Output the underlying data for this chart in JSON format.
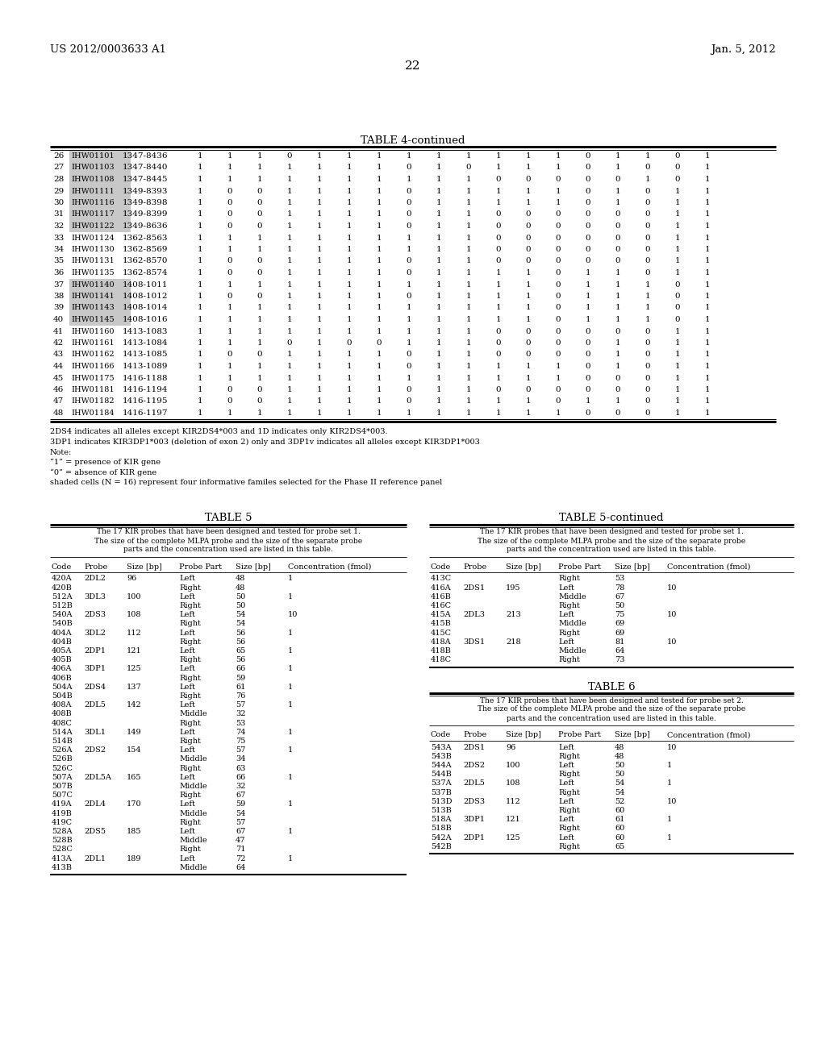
{
  "header_left": "US 2012/0003633 A1",
  "header_right": "Jan. 5, 2012",
  "page_number": "22",
  "table4_title": "TABLE 4-continued",
  "table4_rows": [
    {
      "num": "26",
      "code": "IHW01101",
      "range": "1347-8436",
      "vals": [
        1,
        1,
        1,
        0,
        1,
        1,
        1,
        1,
        1,
        1,
        1,
        1,
        1,
        0,
        1,
        1,
        0,
        1
      ],
      "shaded": true
    },
    {
      "num": "27",
      "code": "IHW01103",
      "range": "1347-8440",
      "vals": [
        1,
        1,
        1,
        1,
        1,
        1,
        1,
        0,
        1,
        0,
        1,
        1,
        1,
        0,
        1,
        0,
        0,
        1
      ],
      "shaded": true
    },
    {
      "num": "28",
      "code": "IHW01108",
      "range": "1347-8445",
      "vals": [
        1,
        1,
        1,
        1,
        1,
        1,
        1,
        1,
        1,
        1,
        0,
        0,
        0,
        0,
        0,
        1,
        0,
        1
      ],
      "shaded": true
    },
    {
      "num": "29",
      "code": "IHW01111",
      "range": "1349-8393",
      "vals": [
        1,
        0,
        0,
        1,
        1,
        1,
        1,
        0,
        1,
        1,
        1,
        1,
        1,
        0,
        1,
        0,
        1,
        1
      ],
      "shaded": true
    },
    {
      "num": "30",
      "code": "IHW01116",
      "range": "1349-8398",
      "vals": [
        1,
        0,
        0,
        1,
        1,
        1,
        1,
        0,
        1,
        1,
        1,
        1,
        1,
        0,
        1,
        0,
        1,
        1
      ],
      "shaded": true
    },
    {
      "num": "31",
      "code": "IHW01117",
      "range": "1349-8399",
      "vals": [
        1,
        0,
        0,
        1,
        1,
        1,
        1,
        0,
        1,
        1,
        0,
        0,
        0,
        0,
        0,
        0,
        1,
        1
      ],
      "shaded": true
    },
    {
      "num": "32",
      "code": "IHW01122",
      "range": "1349-8636",
      "vals": [
        1,
        0,
        0,
        1,
        1,
        1,
        1,
        0,
        1,
        1,
        0,
        0,
        0,
        0,
        0,
        0,
        1,
        1
      ],
      "shaded": true
    },
    {
      "num": "33",
      "code": "IHW01124",
      "range": "1362-8563",
      "vals": [
        1,
        1,
        1,
        1,
        1,
        1,
        1,
        1,
        1,
        1,
        0,
        0,
        0,
        0,
        0,
        0,
        1,
        1
      ],
      "shaded": false
    },
    {
      "num": "34",
      "code": "IHW01130",
      "range": "1362-8569",
      "vals": [
        1,
        1,
        1,
        1,
        1,
        1,
        1,
        1,
        1,
        1,
        0,
        0,
        0,
        0,
        0,
        0,
        1,
        1
      ],
      "shaded": false
    },
    {
      "num": "35",
      "code": "IHW01131",
      "range": "1362-8570",
      "vals": [
        1,
        0,
        0,
        1,
        1,
        1,
        1,
        0,
        1,
        1,
        0,
        0,
        0,
        0,
        0,
        0,
        1,
        1
      ],
      "shaded": false
    },
    {
      "num": "36",
      "code": "IHW01135",
      "range": "1362-8574",
      "vals": [
        1,
        0,
        0,
        1,
        1,
        1,
        1,
        0,
        1,
        1,
        1,
        1,
        0,
        1,
        1,
        0,
        1,
        1
      ],
      "shaded": false
    },
    {
      "num": "37",
      "code": "IHW01140",
      "range": "1408-1011",
      "vals": [
        1,
        1,
        1,
        1,
        1,
        1,
        1,
        1,
        1,
        1,
        1,
        1,
        0,
        1,
        1,
        1,
        0,
        1
      ],
      "shaded": true
    },
    {
      "num": "38",
      "code": "IHW01141",
      "range": "1408-1012",
      "vals": [
        1,
        0,
        0,
        1,
        1,
        1,
        1,
        0,
        1,
        1,
        1,
        1,
        0,
        1,
        1,
        1,
        0,
        1
      ],
      "shaded": true
    },
    {
      "num": "39",
      "code": "IHW01143",
      "range": "1408-1014",
      "vals": [
        1,
        1,
        1,
        1,
        1,
        1,
        1,
        1,
        1,
        1,
        1,
        1,
        0,
        1,
        1,
        1,
        0,
        1
      ],
      "shaded": true
    },
    {
      "num": "40",
      "code": "IHW01145",
      "range": "1408-1016",
      "vals": [
        1,
        1,
        1,
        1,
        1,
        1,
        1,
        1,
        1,
        1,
        1,
        1,
        0,
        1,
        1,
        1,
        0,
        1
      ],
      "shaded": true
    },
    {
      "num": "41",
      "code": "IHW01160",
      "range": "1413-1083",
      "vals": [
        1,
        1,
        1,
        1,
        1,
        1,
        1,
        1,
        1,
        1,
        0,
        0,
        0,
        0,
        0,
        0,
        1,
        1
      ],
      "shaded": false
    },
    {
      "num": "42",
      "code": "IHW01161",
      "range": "1413-1084",
      "vals": [
        1,
        1,
        1,
        0,
        1,
        0,
        0,
        1,
        1,
        1,
        0,
        0,
        0,
        0,
        1,
        0,
        1,
        1
      ],
      "shaded": false
    },
    {
      "num": "43",
      "code": "IHW01162",
      "range": "1413-1085",
      "vals": [
        1,
        0,
        0,
        1,
        1,
        1,
        1,
        0,
        1,
        1,
        0,
        0,
        0,
        0,
        1,
        0,
        1,
        1
      ],
      "shaded": false
    },
    {
      "num": "44",
      "code": "IHW01166",
      "range": "1413-1089",
      "vals": [
        1,
        1,
        1,
        1,
        1,
        1,
        1,
        0,
        1,
        1,
        1,
        1,
        1,
        0,
        1,
        0,
        1,
        1
      ],
      "shaded": false
    },
    {
      "num": "45",
      "code": "IHW01175",
      "range": "1416-1188",
      "vals": [
        1,
        1,
        1,
        1,
        1,
        1,
        1,
        1,
        1,
        1,
        1,
        1,
        1,
        0,
        0,
        0,
        1,
        1
      ],
      "shaded": false
    },
    {
      "num": "46",
      "code": "IHW01181",
      "range": "1416-1194",
      "vals": [
        1,
        0,
        0,
        1,
        1,
        1,
        1,
        0,
        1,
        1,
        0,
        0,
        0,
        0,
        0,
        0,
        1,
        1
      ],
      "shaded": false
    },
    {
      "num": "47",
      "code": "IHW01182",
      "range": "1416-1195",
      "vals": [
        1,
        0,
        0,
        1,
        1,
        1,
        1,
        0,
        1,
        1,
        1,
        1,
        0,
        1,
        1,
        0,
        1,
        1
      ],
      "shaded": false
    },
    {
      "num": "48",
      "code": "IHW01184",
      "range": "1416-1197",
      "vals": [
        1,
        1,
        1,
        1,
        1,
        1,
        1,
        1,
        1,
        1,
        1,
        1,
        1,
        0,
        0,
        0,
        1,
        1
      ],
      "shaded": false
    }
  ],
  "table4_footnotes": [
    "2DS4 indicates all alleles except KIR2DS4*003 and 1D indicates only KIR2DS4*003.",
    "3DP1 indicates KIR3DP1*003 (deletion of exon 2) only and 3DP1v indicates all alleles except KIR3DP1*003",
    "Note:",
    "“1” = presence of KIR gene",
    "“0” = absence of KIR gene",
    "shaded cells (N = 16) represent four informative familes selected for the Phase II reference panel"
  ],
  "table5_title": "TABLE 5",
  "table5cont_title": "TABLE 5-continued",
  "table5_desc": "The 17 KIR probes that have been designed and tested for probe set 1.\nThe size of the complete MLPA probe and the size of the separate probe\nparts and the concentration used are listed in this table.",
  "table5_cols": [
    "Code",
    "Probe",
    "Size [bp]",
    "Probe Part",
    "Size [bp]",
    "Concentration (fmol)"
  ],
  "table5_rows": [
    [
      "420A",
      "2DL2",
      "96",
      "Left",
      "48",
      "1"
    ],
    [
      "420B",
      "",
      "",
      "Right",
      "48",
      ""
    ],
    [
      "512A",
      "3DL3",
      "100",
      "Left",
      "50",
      "1"
    ],
    [
      "512B",
      "",
      "",
      "Right",
      "50",
      ""
    ],
    [
      "540A",
      "2DS3",
      "108",
      "Left",
      "54",
      "10"
    ],
    [
      "540B",
      "",
      "",
      "Right",
      "54",
      ""
    ],
    [
      "404A",
      "3DL2",
      "112",
      "Left",
      "56",
      "1"
    ],
    [
      "404B",
      "",
      "",
      "Right",
      "56",
      ""
    ],
    [
      "405A",
      "2DP1",
      "121",
      "Left",
      "65",
      "1"
    ],
    [
      "405B",
      "",
      "",
      "Right",
      "56",
      ""
    ],
    [
      "406A",
      "3DP1",
      "125",
      "Left",
      "66",
      "1"
    ],
    [
      "406B",
      "",
      "",
      "Right",
      "59",
      ""
    ],
    [
      "504A",
      "2DS4",
      "137",
      "Left",
      "61",
      "1"
    ],
    [
      "504B",
      "",
      "",
      "Right",
      "76",
      ""
    ],
    [
      "408A",
      "2DL5",
      "142",
      "Left",
      "57",
      "1"
    ],
    [
      "408B",
      "",
      "",
      "Middle",
      "32",
      ""
    ],
    [
      "408C",
      "",
      "",
      "Right",
      "53",
      ""
    ],
    [
      "514A",
      "3DL1",
      "149",
      "Left",
      "74",
      "1"
    ],
    [
      "514B",
      "",
      "",
      "Right",
      "75",
      ""
    ],
    [
      "526A",
      "2DS2",
      "154",
      "Left",
      "57",
      "1"
    ],
    [
      "526B",
      "",
      "",
      "Middle",
      "34",
      ""
    ],
    [
      "526C",
      "",
      "",
      "Right",
      "63",
      ""
    ],
    [
      "507A",
      "2DL5A",
      "165",
      "Left",
      "66",
      "1"
    ],
    [
      "507B",
      "",
      "",
      "Middle",
      "32",
      ""
    ],
    [
      "507C",
      "",
      "",
      "Right",
      "67",
      ""
    ],
    [
      "419A",
      "2DL4",
      "170",
      "Left",
      "59",
      "1"
    ],
    [
      "419B",
      "",
      "",
      "Middle",
      "54",
      ""
    ],
    [
      "419C",
      "",
      "",
      "Right",
      "57",
      ""
    ],
    [
      "528A",
      "2DS5",
      "185",
      "Left",
      "67",
      "1"
    ],
    [
      "528B",
      "",
      "",
      "Middle",
      "47",
      ""
    ],
    [
      "528C",
      "",
      "",
      "Right",
      "71",
      ""
    ],
    [
      "413A",
      "2DL1",
      "189",
      "Left",
      "72",
      "1"
    ],
    [
      "413B",
      "",
      "",
      "Middle",
      "64",
      ""
    ]
  ],
  "table5cont_rows": [
    [
      "413C",
      "",
      "",
      "Right",
      "53",
      ""
    ],
    [
      "416A",
      "2DS1",
      "195",
      "Left",
      "78",
      "10"
    ],
    [
      "416B",
      "",
      "",
      "Middle",
      "67",
      ""
    ],
    [
      "416C",
      "",
      "",
      "Right",
      "50",
      ""
    ],
    [
      "415A",
      "2DL3",
      "213",
      "Left",
      "75",
      "10"
    ],
    [
      "415B",
      "",
      "",
      "Middle",
      "69",
      ""
    ],
    [
      "415C",
      "",
      "",
      "Right",
      "69",
      ""
    ],
    [
      "418A",
      "3DS1",
      "218",
      "Left",
      "81",
      "10"
    ],
    [
      "418B",
      "",
      "",
      "Middle",
      "64",
      ""
    ],
    [
      "418C",
      "",
      "",
      "Right",
      "73",
      ""
    ]
  ],
  "table6_title": "TABLE 6",
  "table6_desc": "The 17 KIR probes that have been designed and tested for probe set 2.\nThe size of the complete MLPA probe and the size of the separate probe\nparts and the concentration used are listed in this table.",
  "table6_cols": [
    "Code",
    "Probe",
    "Size [bp]",
    "Probe Part",
    "Size [bp]",
    "Concentration (fmol)"
  ],
  "table6_rows": [
    [
      "543A",
      "2DS1",
      "96",
      "Left",
      "48",
      "10"
    ],
    [
      "543B",
      "",
      "",
      "Right",
      "48",
      ""
    ],
    [
      "544A",
      "2DS2",
      "100",
      "Left",
      "50",
      "1"
    ],
    [
      "544B",
      "",
      "",
      "Right",
      "50",
      ""
    ],
    [
      "537A",
      "2DL5",
      "108",
      "Left",
      "54",
      "1"
    ],
    [
      "537B",
      "",
      "",
      "Right",
      "54",
      ""
    ],
    [
      "513D",
      "2DS3",
      "112",
      "Left",
      "52",
      "10"
    ],
    [
      "513B",
      "",
      "",
      "Right",
      "60",
      ""
    ],
    [
      "518A",
      "3DP1",
      "121",
      "Left",
      "61",
      "1"
    ],
    [
      "518B",
      "",
      "",
      "Right",
      "60",
      ""
    ],
    [
      "542A",
      "2DP1",
      "125",
      "Left",
      "60",
      "1"
    ],
    [
      "542B",
      "",
      "",
      "Right",
      "65",
      ""
    ]
  ],
  "background_color": "#ffffff",
  "text_color": "#000000",
  "shade_color": "#c8c8c8",
  "font_size": 7.5
}
